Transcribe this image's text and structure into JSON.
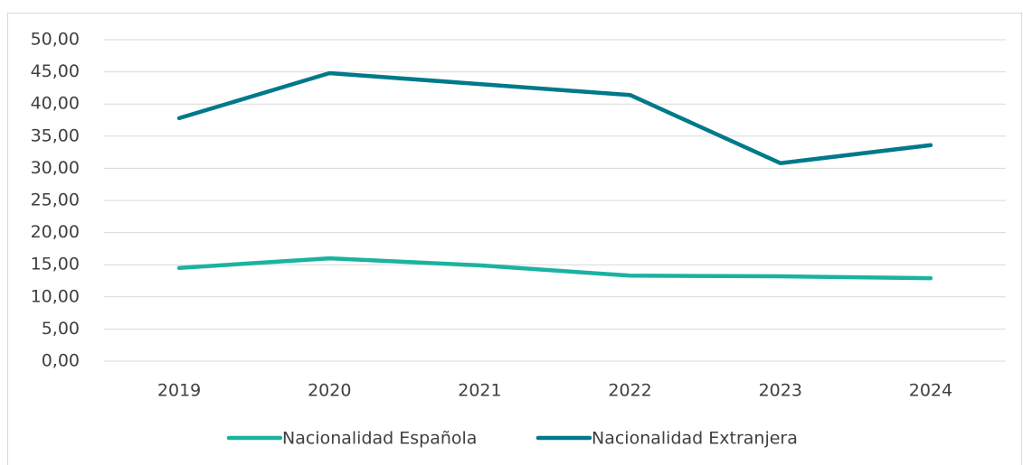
{
  "chart_data": {
    "type": "line",
    "categories": [
      "2019",
      "2020",
      "2021",
      "2022",
      "2023",
      "2024"
    ],
    "series": [
      {
        "name": "Nacionalidad Española",
        "color": "#1ab3a0",
        "values": [
          14.5,
          16.0,
          14.9,
          13.3,
          13.2,
          12.9
        ]
      },
      {
        "name": "Nacionalidad Extranjera",
        "color": "#00798b",
        "values": [
          37.8,
          44.8,
          43.1,
          41.4,
          30.8,
          33.6
        ]
      }
    ],
    "ylim": [
      0,
      50
    ],
    "yticks": [
      {
        "value": 0,
        "label": "0,00"
      },
      {
        "value": 5,
        "label": "5,00"
      },
      {
        "value": 10,
        "label": "10,00"
      },
      {
        "value": 15,
        "label": "15,00"
      },
      {
        "value": 20,
        "label": "20,00"
      },
      {
        "value": 25,
        "label": "25,00"
      },
      {
        "value": 30,
        "label": "30,00"
      },
      {
        "value": 35,
        "label": "35,00"
      },
      {
        "value": 40,
        "label": "40,00"
      },
      {
        "value": 45,
        "label": "45,00"
      },
      {
        "value": 50,
        "label": "50,00"
      }
    ],
    "grid": true,
    "legend": "bottom"
  }
}
